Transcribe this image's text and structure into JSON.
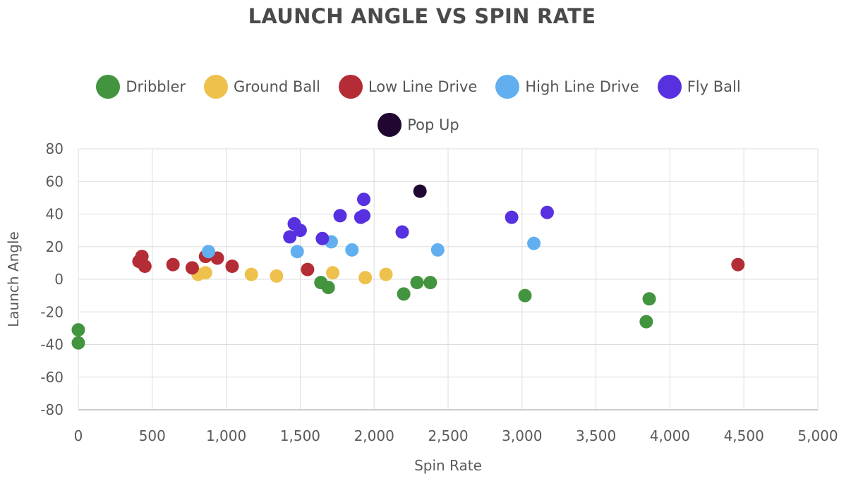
{
  "chart_data": {
    "type": "scatter",
    "title": "LAUNCH ANGLE VS SPIN RATE",
    "xlabel": "Spin Rate",
    "ylabel": "Launch Angle",
    "xlim": [
      0,
      5000
    ],
    "ylim": [
      -80,
      80
    ],
    "x_ticks": [
      0,
      500,
      1000,
      1500,
      2000,
      2500,
      3000,
      3500,
      4000,
      4500,
      5000
    ],
    "x_tick_labels": [
      "0",
      "500",
      "1,000",
      "1,500",
      "2,000",
      "2,500",
      "3,000",
      "3,500",
      "4,000",
      "4,500",
      "5,000"
    ],
    "y_ticks": [
      80,
      60,
      40,
      20,
      0,
      -20,
      -40,
      -60,
      -80
    ],
    "y_tick_labels": [
      "80",
      "60",
      "40",
      "20",
      "0",
      "-20",
      "-40",
      "-60",
      "-80"
    ],
    "grid": true,
    "legend_position": "top-center",
    "series": [
      {
        "name": "Dribbler",
        "color": "#43943f",
        "points": [
          [
            0,
            -31
          ],
          [
            0,
            -39
          ],
          [
            1640,
            -2
          ],
          [
            1690,
            -5
          ],
          [
            2200,
            -9
          ],
          [
            2290,
            -2
          ],
          [
            2380,
            -2
          ],
          [
            3020,
            -10
          ],
          [
            3840,
            -26
          ],
          [
            3860,
            -12
          ]
        ]
      },
      {
        "name": "Ground Ball",
        "color": "#edc14c",
        "points": [
          [
            810,
            3
          ],
          [
            860,
            4
          ],
          [
            1170,
            3
          ],
          [
            1340,
            2
          ],
          [
            1720,
            4
          ],
          [
            1940,
            1
          ],
          [
            2080,
            3
          ]
        ]
      },
      {
        "name": "Low Line Drive",
        "color": "#b42c35",
        "points": [
          [
            410,
            11
          ],
          [
            430,
            14
          ],
          [
            450,
            8
          ],
          [
            640,
            9
          ],
          [
            770,
            7
          ],
          [
            860,
            14
          ],
          [
            940,
            13
          ],
          [
            1040,
            8
          ],
          [
            1550,
            6
          ],
          [
            4460,
            9
          ]
        ]
      },
      {
        "name": "High Line Drive",
        "color": "#62aff0",
        "points": [
          [
            880,
            17
          ],
          [
            1480,
            17
          ],
          [
            1710,
            23
          ],
          [
            1850,
            18
          ],
          [
            2430,
            18
          ],
          [
            3080,
            22
          ]
        ]
      },
      {
        "name": "Fly Ball",
        "color": "#5731e0",
        "points": [
          [
            1430,
            26
          ],
          [
            1460,
            34
          ],
          [
            1500,
            30
          ],
          [
            1650,
            25
          ],
          [
            1770,
            39
          ],
          [
            1910,
            38
          ],
          [
            1930,
            39
          ],
          [
            1930,
            49
          ],
          [
            2190,
            29
          ],
          [
            2930,
            38
          ],
          [
            3170,
            41
          ]
        ]
      },
      {
        "name": "Pop Up",
        "color": "#1f0731",
        "points": [
          [
            2310,
            54
          ]
        ]
      }
    ]
  }
}
